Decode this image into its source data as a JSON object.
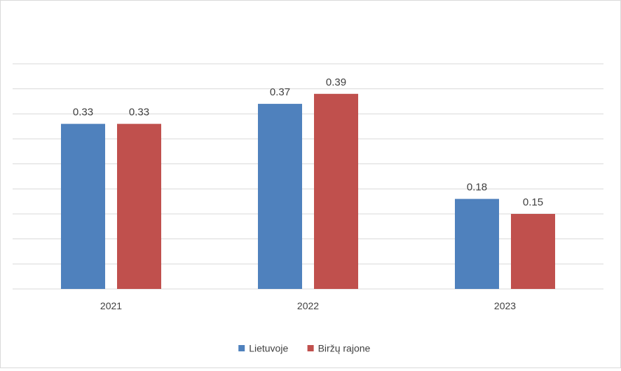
{
  "chart_data": {
    "type": "bar",
    "title": "",
    "xlabel": "",
    "ylabel": "",
    "categories": [
      "2021",
      "2022",
      "2023"
    ],
    "series": [
      {
        "name": "Lietuvoje",
        "values": [
          0.33,
          0.37,
          0.18
        ],
        "labels": [
          "0.33",
          "0.37",
          "0.18"
        ],
        "color": "#4f81bd"
      },
      {
        "name": "Biržų rajone",
        "values": [
          0.33,
          0.39,
          0.15
        ],
        "labels": [
          "0.33",
          "0.39",
          "0.15"
        ],
        "color": "#c0504d"
      }
    ],
    "ylim": [
      0,
      0.45
    ],
    "grid": true,
    "y_tick_labels_visible": false,
    "legend": "bottom-center",
    "data_labels": true
  }
}
